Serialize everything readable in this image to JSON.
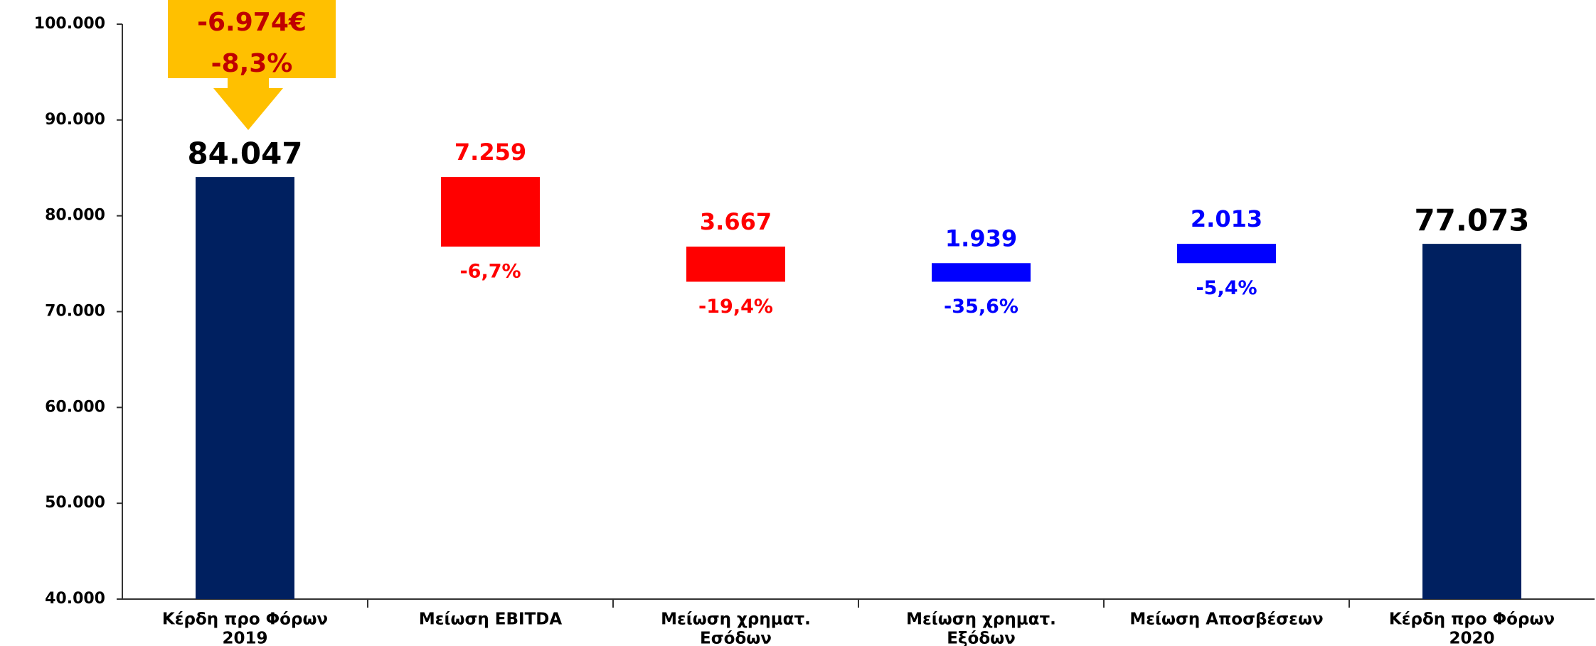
{
  "chart_data": {
    "type": "waterfall",
    "categories": [
      [
        "Κέρδη προ Φόρων",
        "2019"
      ],
      [
        "Μείωση EBITDA"
      ],
      [
        "Μείωση χρηματ.",
        "Εσόδων"
      ],
      [
        "Μείωση χρηματ.",
        "Εξόδων"
      ],
      [
        "Μείωση Αποσβέσεων"
      ],
      [
        "Κέρδη προ Φόρων",
        "2020"
      ]
    ],
    "measure": [
      "absolute",
      "relative",
      "relative",
      "relative",
      "relative",
      "absolute"
    ],
    "values": [
      84047,
      -7259,
      -3667,
      1939,
      2013,
      77073
    ],
    "value_labels": [
      "84.047",
      "7.259",
      "3.667",
      "1.939",
      "2.013",
      "77.073"
    ],
    "colors": [
      "#002060",
      "#ff0000",
      "#ff0000",
      "#0000ff",
      "#0000ff",
      "#002060"
    ],
    "percent_labels": [
      "-6,7%",
      "-19,4%",
      "-35,6%",
      "-5,4%"
    ],
    "callout": [
      "-6.974€",
      "-8,3%"
    ],
    "ylim": [
      40000,
      100000
    ],
    "yticks": [
      {
        "value": 40000,
        "label": "40.000"
      },
      {
        "value": 50000,
        "label": "50.000"
      },
      {
        "value": 60000,
        "label": "60.000"
      },
      {
        "value": 70000,
        "label": "70.000"
      },
      {
        "value": 80000,
        "label": "80.000"
      },
      {
        "value": 90000,
        "label": "90.000"
      },
      {
        "value": 100000,
        "label": "100.000"
      }
    ],
    "grid": false
  }
}
